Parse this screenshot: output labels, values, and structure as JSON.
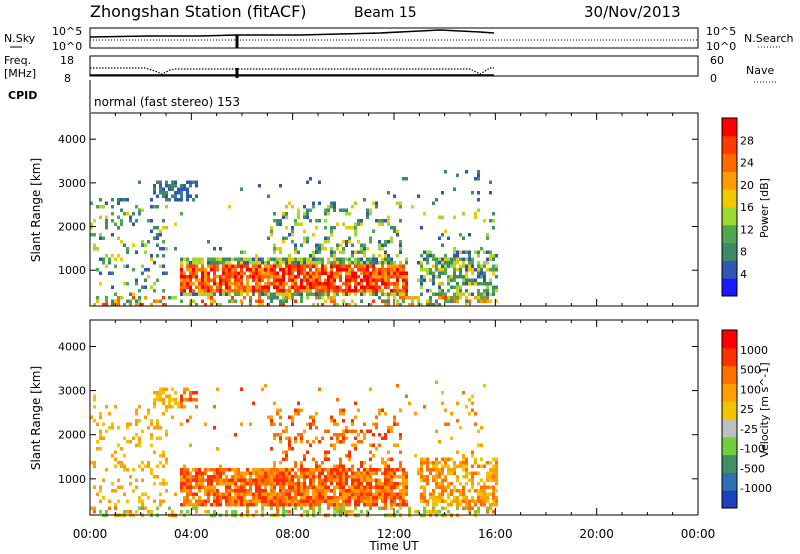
{
  "header": {
    "title": "Zhongshan Station (fitACF)",
    "beam": "Beam 15",
    "date": "30/Nov/2013"
  },
  "noise_panel": {
    "left_label": "N.Sky",
    "left_ticks": [
      "10^5",
      "10^0"
    ],
    "right_label": "N.Search",
    "right_ticks": [
      "10^5",
      "10^0"
    ]
  },
  "freq_panel": {
    "left_label_line1": "Freq.",
    "left_label_line2": "[MHz]",
    "left_ticks": [
      "18",
      "8"
    ],
    "right_label": "Nave",
    "right_ticks": [
      "60",
      "0"
    ]
  },
  "cpid_panel": {
    "label": "CPID",
    "text": "normal (fast stereo) 153"
  },
  "colors": {
    "power": [
      "#1a1aff",
      "#2f57b3",
      "#3d8a6a",
      "#4fa84f",
      "#9ed832",
      "#f2c800",
      "#ff9c00",
      "#ff6a00",
      "#ff3a00",
      "#ff0000"
    ],
    "velocity": [
      "#1f3fbf",
      "#2e6fb2",
      "#3f9066",
      "#6fcf3f",
      "#bfbfbf",
      "#f5c400",
      "#ffa000",
      "#ff7000",
      "#ff3000",
      "#ff0000"
    ]
  },
  "chart_data": [
    {
      "type": "heatmap",
      "name": "power",
      "ylabel": "Slant Range [km]",
      "yticks": [
        1000,
        2000,
        3000,
        4000
      ],
      "ylim": [
        180,
        4600
      ],
      "xlim": [
        0,
        24
      ],
      "colorbar_label": "Power [dB]",
      "colorbar_ticks": [
        "28",
        "24",
        "20",
        "16",
        "12",
        "8",
        "4"
      ],
      "colorbar_range": [
        0,
        30
      ]
    },
    {
      "type": "heatmap",
      "name": "velocity",
      "ylabel": "Slant Range [km]",
      "yticks": [
        1000,
        2000,
        3000,
        4000
      ],
      "ylim": [
        180,
        4600
      ],
      "xlim": [
        0,
        24
      ],
      "colorbar_label": "Velocity [m s^-1]",
      "colorbar_ticks": [
        "1000",
        "500",
        "100",
        "25",
        "-25",
        "-100",
        "-500",
        "-1000"
      ]
    }
  ],
  "xaxis": {
    "label": "Time UT",
    "ticks": [
      "00:00",
      "04:00",
      "08:00",
      "12:00",
      "16:00",
      "20:00",
      "00:00"
    ],
    "tick_hours": [
      0,
      4,
      8,
      12,
      16,
      20,
      24
    ]
  }
}
